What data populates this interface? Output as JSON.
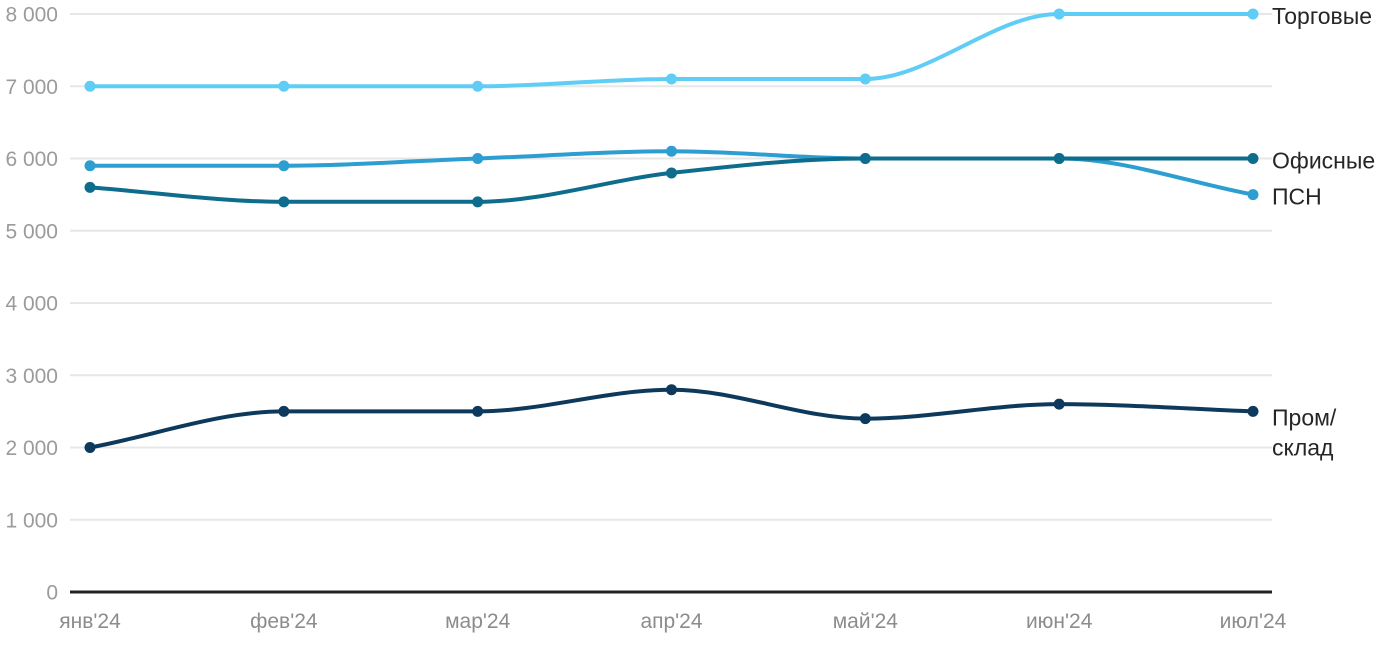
{
  "chart_data": {
    "type": "line",
    "title": "",
    "x_labels": [
      "янв'24",
      "фев'24",
      "мар'24",
      "апр'24",
      "май'24",
      "июн'24",
      "июл'24"
    ],
    "ylim": [
      0,
      8000
    ],
    "grid": "horizontal",
    "legend_position": "right-of-line-ends",
    "y_ticks": [
      {
        "value": 0,
        "label": "0"
      },
      {
        "value": 1000,
        "label": "1 000"
      },
      {
        "value": 2000,
        "label": "2 000"
      },
      {
        "value": 3000,
        "label": "3 000"
      },
      {
        "value": 4000,
        "label": "4 000"
      },
      {
        "value": 5000,
        "label": "5 000"
      },
      {
        "value": 6000,
        "label": "6 000"
      },
      {
        "value": 7000,
        "label": "7 000"
      },
      {
        "value": 8000,
        "label": "8 000"
      }
    ],
    "series": [
      {
        "id": "torgovye",
        "name": "Торговые",
        "legend_lines": [
          "Торговые"
        ],
        "color": "#5FCDF5",
        "values": [
          7000,
          7000,
          7000,
          7100,
          7100,
          8000,
          8000
        ]
      },
      {
        "id": "psn",
        "name": "ПСН",
        "legend_lines": [
          "ПСН"
        ],
        "color": "#2D9ED0",
        "values": [
          5900,
          5900,
          6000,
          6100,
          6000,
          6000,
          5500
        ]
      },
      {
        "id": "ofisnye",
        "name": "Офисные",
        "legend_lines": [
          "Офисные"
        ],
        "color": "#0E6C8C",
        "values": [
          5600,
          5400,
          5400,
          5800,
          6000,
          6000,
          6000
        ]
      },
      {
        "id": "prom-sklad",
        "name": "Пром/склад",
        "legend_lines": [
          "Пром/",
          "склад"
        ],
        "color": "#0D3A5C",
        "values": [
          2000,
          2500,
          2500,
          2800,
          2400,
          2600,
          2500
        ]
      }
    ],
    "colors": {
      "background": "#FFFFFF",
      "grid": "#E7E7E7",
      "axis": "#222222",
      "y_tick_text": "#9B9B9B",
      "x_tick_text": "#8C8C8C",
      "legend_text": "#262626"
    }
  }
}
